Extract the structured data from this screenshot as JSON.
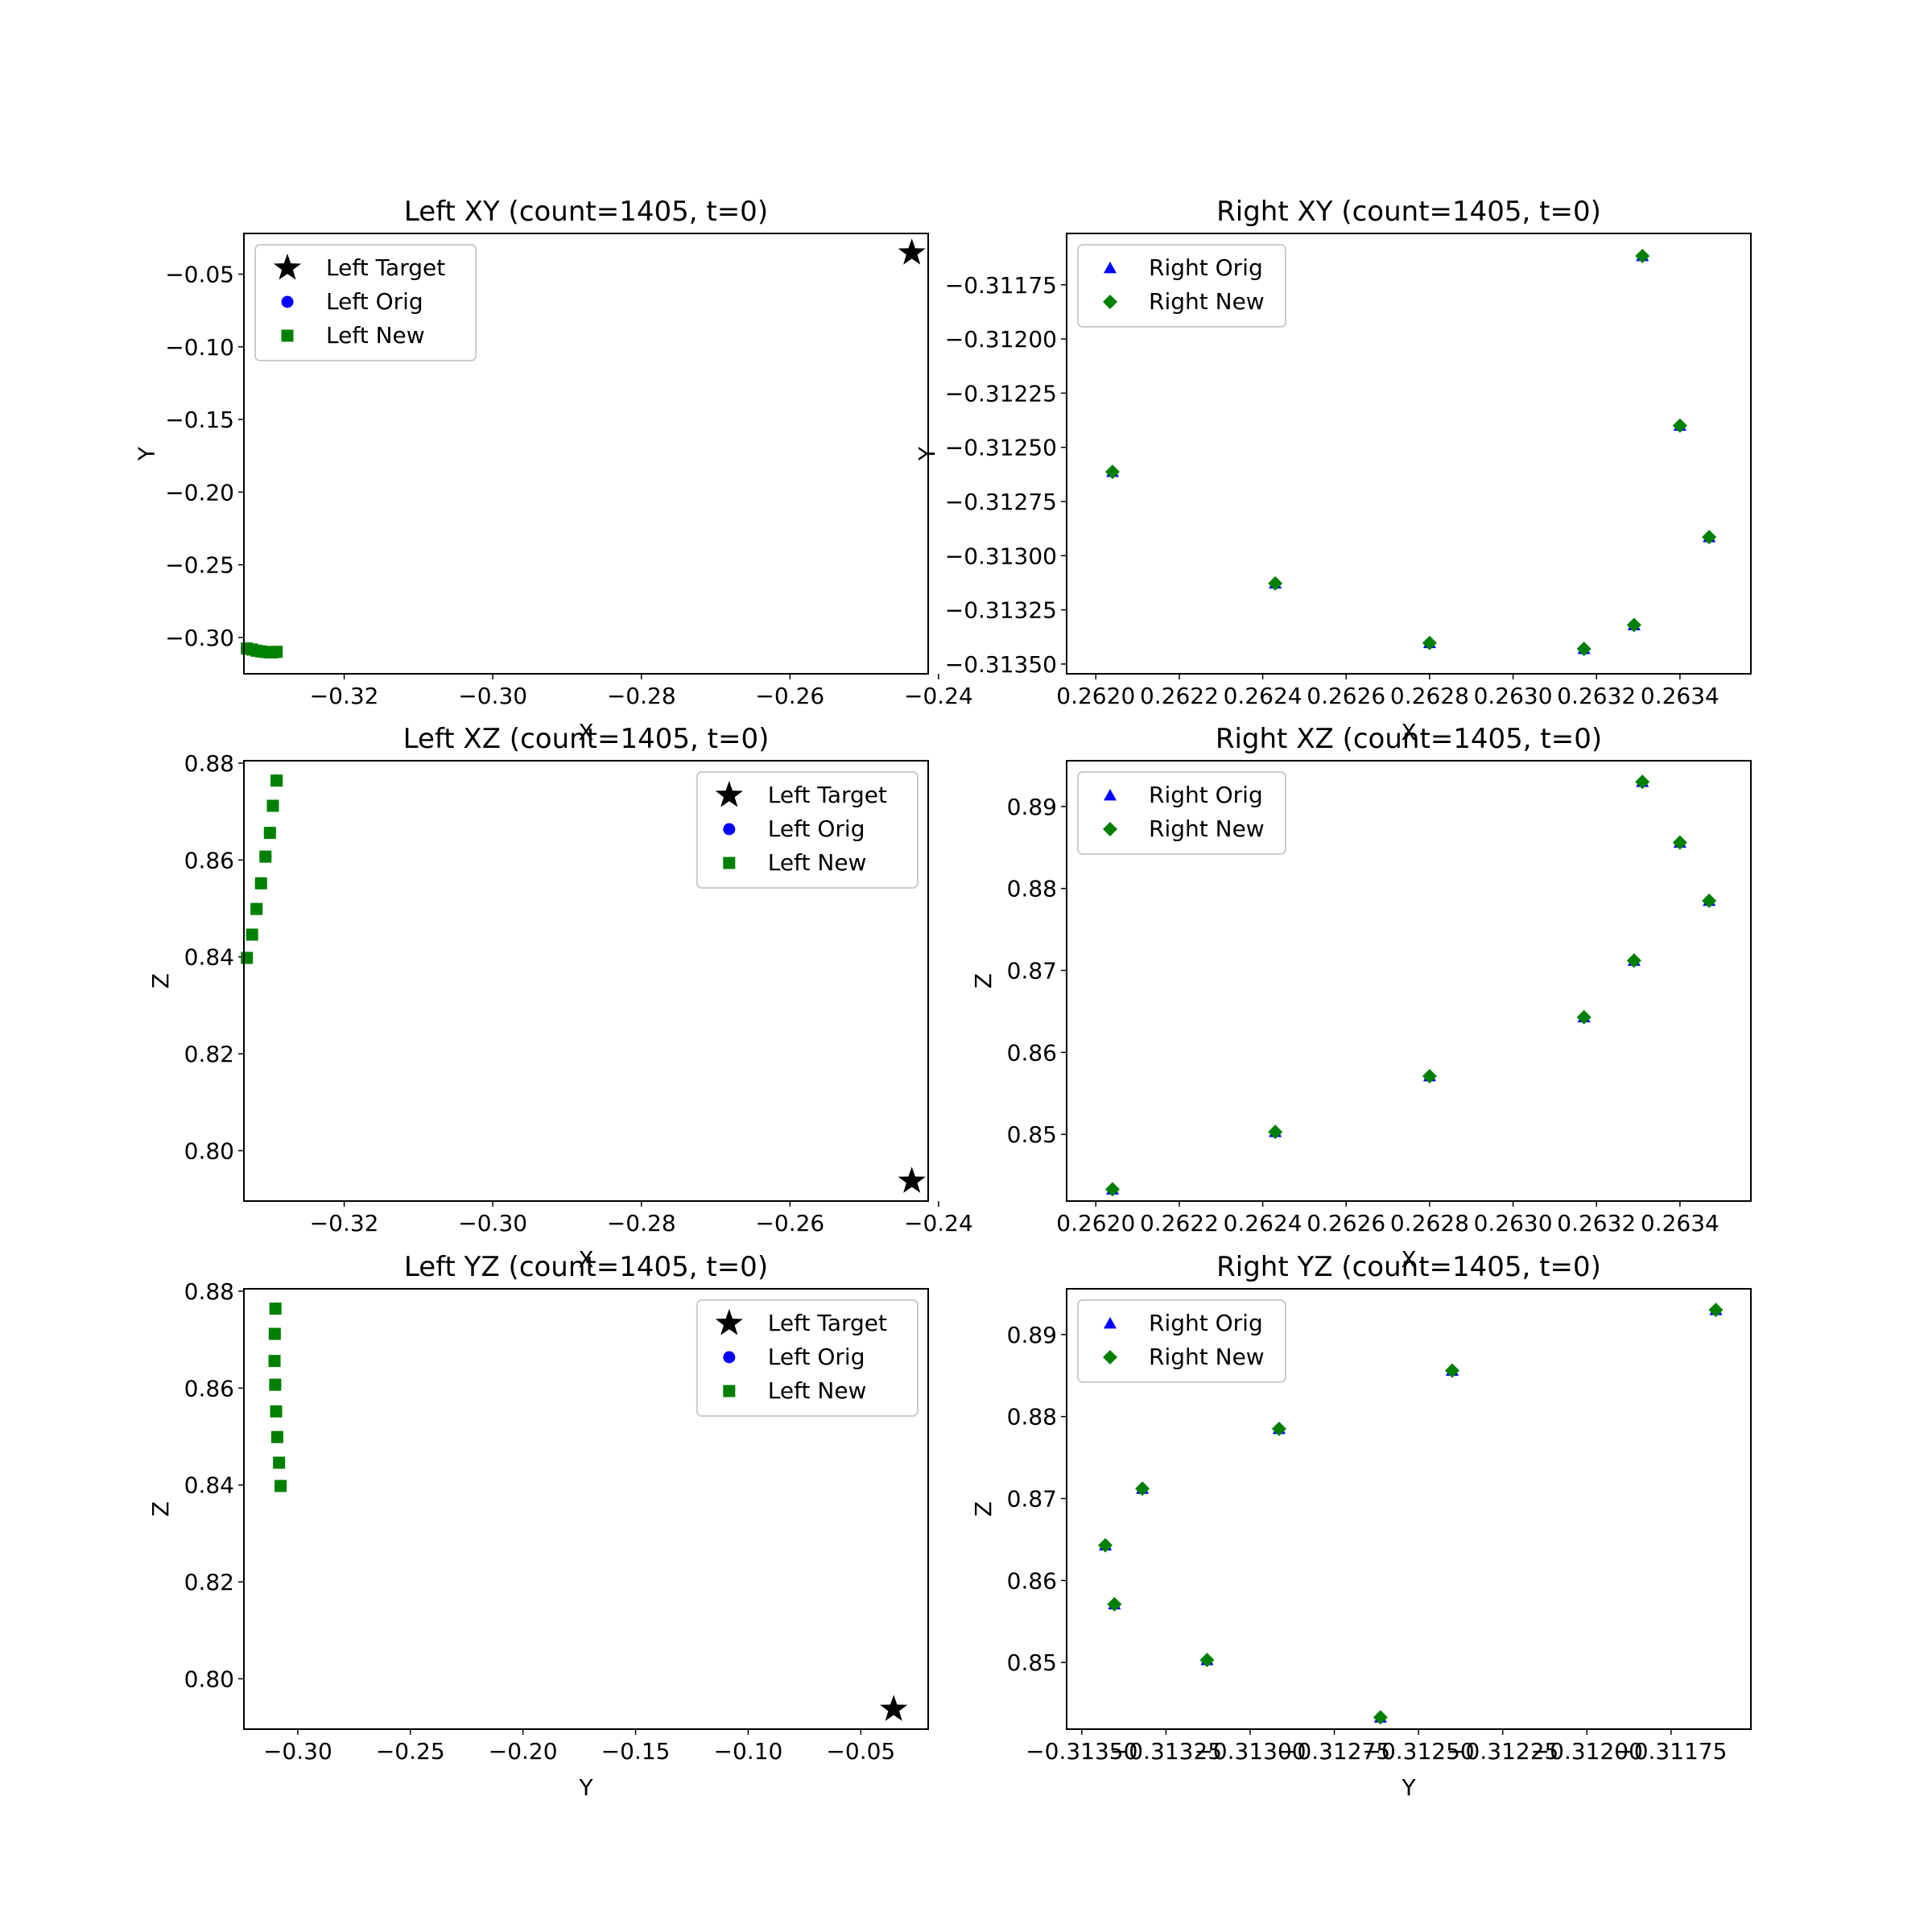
{
  "colors": {
    "target": "#000000",
    "orig": "#0000ff",
    "new": "#008000"
  },
  "legend_labels": {
    "left": [
      "Left Target",
      "Left Orig",
      "Left New"
    ],
    "right": [
      "Right Orig",
      "Right New"
    ]
  },
  "chart_data": [
    {
      "type": "scatter",
      "title": "Left XY (count=1405, t=0)",
      "xlabel": "X",
      "ylabel": "Y",
      "xlim": [
        -0.3335,
        -0.2414
      ],
      "ylim": [
        -0.325,
        -0.022
      ],
      "xticks": [
        -0.32,
        -0.3,
        -0.28,
        -0.26,
        -0.24
      ],
      "xticklabels": [
        "−0.32",
        "−0.30",
        "−0.28",
        "−0.26",
        "−0.24"
      ],
      "yticks": [
        -0.05,
        -0.1,
        -0.15,
        -0.2,
        -0.25,
        -0.3
      ],
      "yticklabels": [
        "−0.05",
        "−0.10",
        "−0.15",
        "−0.20",
        "−0.25",
        "−0.30"
      ],
      "legend": "upper-left",
      "grid": false,
      "series": [
        {
          "name": "Left Target",
          "marker": "star",
          "x": [
            -0.2436
          ],
          "y": [
            -0.0354
          ]
        },
        {
          "name": "Left Orig",
          "marker": "circle",
          "x": [
            -0.3331,
            -0.3324,
            -0.3318,
            -0.3312,
            -0.3306,
            -0.33,
            -0.3296,
            -0.3291
          ],
          "y": [
            -0.3076,
            -0.3083,
            -0.3091,
            -0.3096,
            -0.31,
            -0.3103,
            -0.3102,
            -0.3099
          ]
        },
        {
          "name": "Left New",
          "marker": "square",
          "x": [
            -0.3331,
            -0.3324,
            -0.3318,
            -0.3312,
            -0.3306,
            -0.33,
            -0.3296,
            -0.3291
          ],
          "y": [
            -0.3076,
            -0.3083,
            -0.3091,
            -0.3096,
            -0.31,
            -0.3103,
            -0.3102,
            -0.3099
          ]
        }
      ]
    },
    {
      "type": "scatter",
      "title": "Right XY (count=1405, t=0)",
      "xlabel": "X",
      "ylabel": "Y",
      "xlim": [
        0.26193,
        0.26357
      ],
      "ylim": [
        -0.313545,
        -0.311513
      ],
      "xticks": [
        0.262,
        0.2622,
        0.2624,
        0.2626,
        0.2628,
        0.263,
        0.2632,
        0.2634
      ],
      "xticklabels": [
        "0.2620",
        "0.2622",
        "0.2624",
        "0.2626",
        "0.2628",
        "0.2630",
        "0.2632",
        "0.2634"
      ],
      "yticks": [
        -0.31175,
        -0.312,
        -0.31225,
        -0.3125,
        -0.31275,
        -0.313,
        -0.31325,
        -0.3135
      ],
      "yticklabels": [
        "−0.31175",
        "−0.31200",
        "−0.31225",
        "−0.31250",
        "−0.31275",
        "−0.31300",
        "−0.31325",
        "−0.31350"
      ],
      "legend": "upper-left",
      "grid": false,
      "series": [
        {
          "name": "Right Orig",
          "marker": "triangle",
          "x": [
            0.26204,
            0.26243,
            0.2628,
            0.26317,
            0.26329,
            0.26347,
            0.2634,
            0.26331
          ],
          "y": [
            -0.312613,
            -0.313128,
            -0.313403,
            -0.31343,
            -0.31332,
            -0.312914,
            -0.3124,
            -0.311617
          ]
        },
        {
          "name": "Right New",
          "marker": "diamond",
          "x": [
            0.26204,
            0.26243,
            0.2628,
            0.26317,
            0.26329,
            0.26347,
            0.2634,
            0.26331
          ],
          "y": [
            -0.312613,
            -0.313128,
            -0.313403,
            -0.31343,
            -0.31332,
            -0.312914,
            -0.3124,
            -0.311617
          ]
        }
      ]
    },
    {
      "type": "scatter",
      "title": "Left XZ (count=1405, t=0)",
      "xlabel": "X",
      "ylabel": "Z",
      "xlim": [
        -0.3335,
        -0.2414
      ],
      "ylim": [
        0.7896,
        0.8805
      ],
      "xticks": [
        -0.32,
        -0.3,
        -0.28,
        -0.26,
        -0.24
      ],
      "xticklabels": [
        "−0.32",
        "−0.30",
        "−0.28",
        "−0.26",
        "−0.24"
      ],
      "yticks": [
        0.8,
        0.82,
        0.84,
        0.86,
        0.88
      ],
      "yticklabels": [
        "0.80",
        "0.82",
        "0.84",
        "0.86",
        "0.88"
      ],
      "legend": "upper-right",
      "grid": false,
      "series": [
        {
          "name": "Left Target",
          "marker": "star",
          "x": [
            -0.2436
          ],
          "y": [
            0.7937
          ]
        },
        {
          "name": "Left Orig",
          "marker": "circle",
          "x": [
            -0.3331,
            -0.3324,
            -0.3318,
            -0.3312,
            -0.3306,
            -0.33,
            -0.3296,
            -0.3291
          ],
          "y": [
            0.8398,
            0.8446,
            0.8499,
            0.8552,
            0.8607,
            0.8656,
            0.8712,
            0.8764
          ]
        },
        {
          "name": "Left New",
          "marker": "square",
          "x": [
            -0.3331,
            -0.3324,
            -0.3318,
            -0.3312,
            -0.3306,
            -0.33,
            -0.3296,
            -0.3291
          ],
          "y": [
            0.8398,
            0.8446,
            0.8499,
            0.8552,
            0.8607,
            0.8656,
            0.8712,
            0.8764
          ]
        }
      ]
    },
    {
      "type": "scatter",
      "title": "Right XZ (count=1405, t=0)",
      "xlabel": "X",
      "ylabel": "Z",
      "xlim": [
        0.26193,
        0.26357
      ],
      "ylim": [
        0.84187,
        0.89558
      ],
      "xticks": [
        0.262,
        0.2622,
        0.2624,
        0.2626,
        0.2628,
        0.263,
        0.2632,
        0.2634
      ],
      "xticklabels": [
        "0.2620",
        "0.2622",
        "0.2624",
        "0.2626",
        "0.2628",
        "0.2630",
        "0.2632",
        "0.2634"
      ],
      "yticks": [
        0.85,
        0.86,
        0.87,
        0.88,
        0.89
      ],
      "yticklabels": [
        "0.85",
        "0.86",
        "0.87",
        "0.88",
        "0.89"
      ],
      "legend": "upper-left",
      "grid": false,
      "series": [
        {
          "name": "Right Orig",
          "marker": "triangle",
          "x": [
            0.26204,
            0.26243,
            0.2628,
            0.26317,
            0.26329,
            0.26347,
            0.2634,
            0.26331
          ],
          "y": [
            0.8433,
            0.8503,
            0.8571,
            0.8643,
            0.8712,
            0.8785,
            0.8856,
            0.893
          ]
        },
        {
          "name": "Right New",
          "marker": "diamond",
          "x": [
            0.26204,
            0.26243,
            0.2628,
            0.26317,
            0.26329,
            0.26347,
            0.2634,
            0.26331
          ],
          "y": [
            0.8433,
            0.8503,
            0.8571,
            0.8643,
            0.8712,
            0.8785,
            0.8856,
            0.893
          ]
        }
      ]
    },
    {
      "type": "scatter",
      "title": "Left YZ (count=1405, t=0)",
      "xlabel": "Y",
      "ylabel": "Z",
      "xlim": [
        -0.3239,
        -0.0201
      ],
      "ylim": [
        0.7896,
        0.8805
      ],
      "xticks": [
        -0.3,
        -0.25,
        -0.2,
        -0.15,
        -0.1,
        -0.05
      ],
      "xticklabels": [
        "−0.30",
        "−0.25",
        "−0.20",
        "−0.15",
        "−0.10",
        "−0.05"
      ],
      "yticks": [
        0.8,
        0.82,
        0.84,
        0.86,
        0.88
      ],
      "yticklabels": [
        "0.80",
        "0.82",
        "0.84",
        "0.86",
        "0.88"
      ],
      "legend": "upper-right",
      "grid": false,
      "series": [
        {
          "name": "Left Target",
          "marker": "star",
          "x": [
            -0.0354
          ],
          "y": [
            0.7937
          ]
        },
        {
          "name": "Left Orig",
          "marker": "circle",
          "x": [
            -0.3076,
            -0.3083,
            -0.3091,
            -0.3096,
            -0.31,
            -0.3103,
            -0.3102,
            -0.3099
          ],
          "y": [
            0.8398,
            0.8446,
            0.8499,
            0.8552,
            0.8607,
            0.8656,
            0.8712,
            0.8764
          ]
        },
        {
          "name": "Left New",
          "marker": "square",
          "x": [
            -0.3076,
            -0.3083,
            -0.3091,
            -0.3096,
            -0.31,
            -0.3103,
            -0.3102,
            -0.3099
          ],
          "y": [
            0.8398,
            0.8446,
            0.8499,
            0.8552,
            0.8607,
            0.8656,
            0.8712,
            0.8764
          ]
        }
      ]
    },
    {
      "type": "scatter",
      "title": "Right YZ (count=1405, t=0)",
      "xlabel": "Y",
      "ylabel": "Z",
      "xlim": [
        -0.313545,
        -0.311513
      ],
      "ylim": [
        0.84187,
        0.89558
      ],
      "xticks": [
        -0.3135,
        -0.31325,
        -0.313,
        -0.31275,
        -0.3125,
        -0.31225,
        -0.312,
        -0.31175
      ],
      "xticklabels": [
        "−0.31350",
        "−0.31325",
        "−0.31300",
        "−0.31275",
        "−0.31250",
        "−0.31225",
        "−0.31200",
        "−0.31175"
      ],
      "yticks": [
        0.85,
        0.86,
        0.87,
        0.88,
        0.89
      ],
      "yticklabels": [
        "0.85",
        "0.86",
        "0.87",
        "0.88",
        "0.89"
      ],
      "legend": "upper-left",
      "grid": false,
      "series": [
        {
          "name": "Right Orig",
          "marker": "triangle",
          "x": [
            -0.312613,
            -0.313128,
            -0.313403,
            -0.31343,
            -0.31332,
            -0.312914,
            -0.3124,
            -0.311617
          ],
          "y": [
            0.8433,
            0.8503,
            0.8571,
            0.8643,
            0.8712,
            0.8785,
            0.8856,
            0.893
          ]
        },
        {
          "name": "Right New",
          "marker": "diamond",
          "x": [
            -0.312613,
            -0.313128,
            -0.313403,
            -0.31343,
            -0.31332,
            -0.312914,
            -0.3124,
            -0.311617
          ],
          "y": [
            0.8433,
            0.8503,
            0.8571,
            0.8643,
            0.8712,
            0.8785,
            0.8856,
            0.893
          ]
        }
      ]
    }
  ]
}
